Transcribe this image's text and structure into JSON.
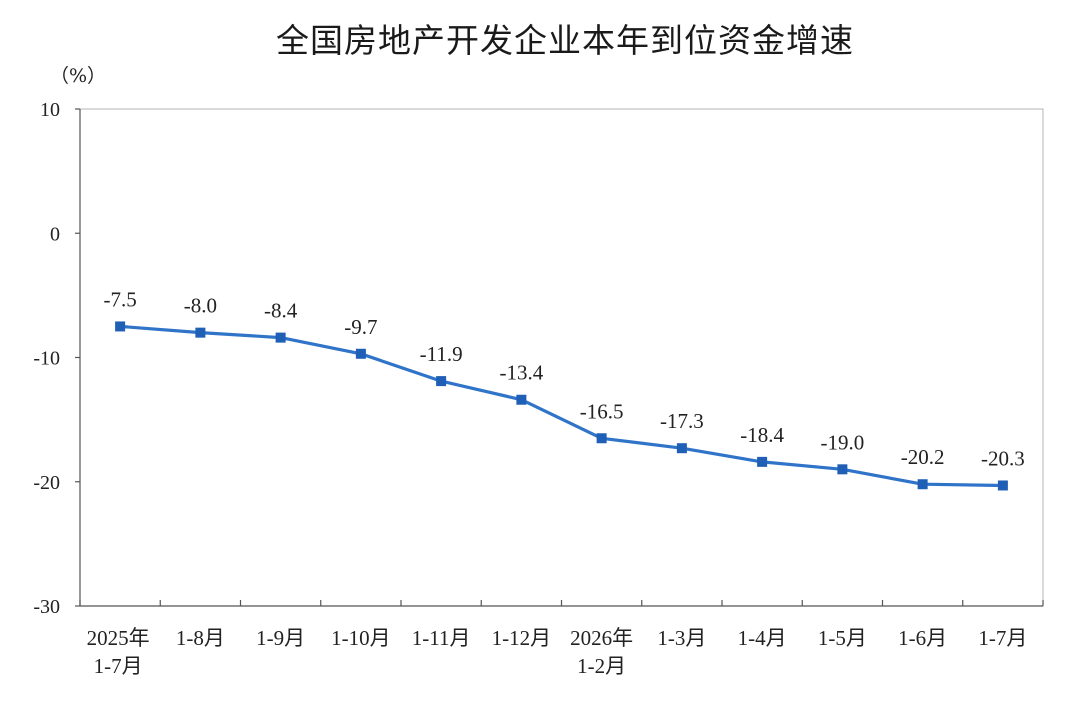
{
  "chart_data": {
    "type": "line",
    "title": "全国房地产开发企业本年到位资金增速",
    "ylabel": "（%）",
    "xlabel": "",
    "ylim": [
      -30,
      10
    ],
    "yticks": [
      10,
      0,
      -10,
      -20,
      -30
    ],
    "grid": false,
    "legend": "none",
    "categories": [
      [
        "2025年",
        "1-7月"
      ],
      [
        "1-8月"
      ],
      [
        "1-9月"
      ],
      [
        "1-10月"
      ],
      [
        "1-11月"
      ],
      [
        "1-12月"
      ],
      [
        "2026年",
        "1-2月"
      ],
      [
        "1-3月"
      ],
      [
        "1-4月"
      ],
      [
        "1-5月"
      ],
      [
        "1-6月"
      ],
      [
        "1-7月"
      ]
    ],
    "series": [
      {
        "values": [
          -7.5,
          -8.0,
          -8.4,
          -9.7,
          -11.9,
          -13.4,
          -16.5,
          -17.3,
          -18.4,
          -19.0,
          -20.2,
          -20.3
        ],
        "labels": [
          "-7.5",
          "-8.0",
          "-8.4",
          "-9.7",
          "-11.9",
          "-13.4",
          "-16.5",
          "-17.3",
          "-18.4",
          "-19.0",
          "-20.2",
          "-20.3"
        ],
        "color": "#2f74c8"
      }
    ]
  }
}
